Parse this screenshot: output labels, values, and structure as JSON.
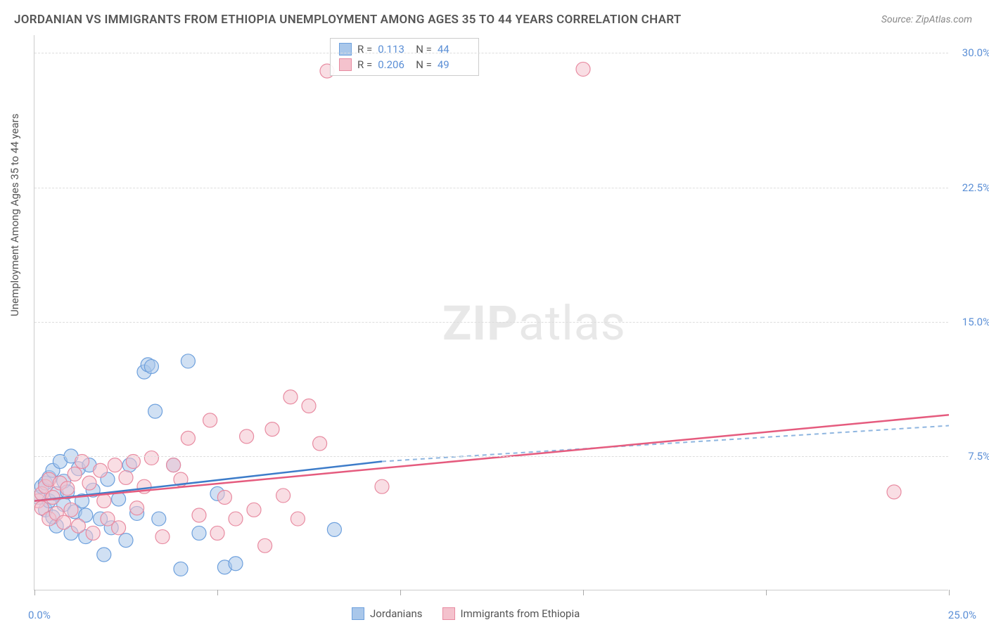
{
  "title": "JORDANIAN VS IMMIGRANTS FROM ETHIOPIA UNEMPLOYMENT AMONG AGES 35 TO 44 YEARS CORRELATION CHART",
  "source": "Source: ZipAtlas.com",
  "y_axis_label": "Unemployment Among Ages 35 to 44 years",
  "watermark_bold": "ZIP",
  "watermark_rest": "atlas",
  "chart": {
    "type": "scatter",
    "xlim": [
      0,
      25
    ],
    "ylim": [
      0,
      31
    ],
    "x_ticks": [
      0,
      5,
      10,
      15,
      20,
      25
    ],
    "x_tick_labels": {
      "0": "0.0%",
      "25": "25.0%"
    },
    "y_ticks": [
      7.5,
      15.0,
      22.5,
      30.0
    ],
    "y_tick_labels": [
      "7.5%",
      "15.0%",
      "22.5%",
      "30.0%"
    ],
    "grid_color": "#dddddd",
    "axis_color": "#cccccc",
    "background_color": "#ffffff",
    "marker_radius": 10,
    "marker_opacity": 0.55,
    "series": [
      {
        "name": "Jordanians",
        "fill": "#a9c7ea",
        "stroke": "#6da0dd",
        "R": "0.113",
        "N": "44",
        "trend": {
          "x1": 0,
          "y1": 5.0,
          "x2": 9.5,
          "y2": 7.2,
          "x2_dash": 25,
          "y2_dash": 9.2,
          "color": "#3d7cc9",
          "width": 2.5,
          "dash_color": "#8fb6e0"
        },
        "points": [
          [
            0.1,
            5.2
          ],
          [
            0.2,
            5.8
          ],
          [
            0.3,
            4.5
          ],
          [
            0.3,
            6.0
          ],
          [
            0.4,
            5.0
          ],
          [
            0.4,
            6.3
          ],
          [
            0.5,
            4.1
          ],
          [
            0.5,
            6.7
          ],
          [
            0.6,
            3.6
          ],
          [
            0.6,
            5.4
          ],
          [
            0.7,
            7.2
          ],
          [
            0.8,
            4.8
          ],
          [
            0.8,
            6.1
          ],
          [
            0.9,
            5.5
          ],
          [
            1.0,
            3.2
          ],
          [
            1.0,
            7.5
          ],
          [
            1.1,
            4.4
          ],
          [
            1.2,
            6.8
          ],
          [
            1.3,
            5.0
          ],
          [
            1.4,
            3.0
          ],
          [
            1.4,
            4.2
          ],
          [
            1.5,
            7.0
          ],
          [
            1.6,
            5.6
          ],
          [
            1.8,
            4.0
          ],
          [
            1.9,
            2.0
          ],
          [
            2.0,
            6.2
          ],
          [
            2.1,
            3.5
          ],
          [
            2.3,
            5.1
          ],
          [
            2.5,
            2.8
          ],
          [
            2.6,
            7.0
          ],
          [
            2.8,
            4.3
          ],
          [
            3.0,
            12.2
          ],
          [
            3.1,
            12.6
          ],
          [
            3.2,
            12.5
          ],
          [
            3.3,
            10.0
          ],
          [
            3.4,
            4.0
          ],
          [
            3.8,
            7.0
          ],
          [
            4.0,
            1.2
          ],
          [
            4.2,
            12.8
          ],
          [
            4.5,
            3.2
          ],
          [
            5.0,
            5.4
          ],
          [
            5.2,
            1.3
          ],
          [
            5.5,
            1.5
          ],
          [
            8.2,
            3.4
          ]
        ]
      },
      {
        "name": "Immigrants from Ethiopia",
        "fill": "#f4c2cd",
        "stroke": "#e88ba1",
        "R": "0.206",
        "N": "49",
        "trend": {
          "x1": 0,
          "y1": 5.0,
          "x2": 25,
          "y2": 9.8,
          "color": "#e55b7e",
          "width": 2.5
        },
        "points": [
          [
            0.1,
            5.0
          ],
          [
            0.2,
            5.4
          ],
          [
            0.2,
            4.6
          ],
          [
            0.3,
            5.8
          ],
          [
            0.4,
            4.0
          ],
          [
            0.4,
            6.2
          ],
          [
            0.5,
            5.2
          ],
          [
            0.6,
            4.3
          ],
          [
            0.7,
            6.0
          ],
          [
            0.8,
            3.8
          ],
          [
            0.9,
            5.7
          ],
          [
            1.0,
            4.5
          ],
          [
            1.1,
            6.5
          ],
          [
            1.2,
            3.6
          ],
          [
            1.3,
            7.2
          ],
          [
            1.5,
            6.0
          ],
          [
            1.6,
            3.2
          ],
          [
            1.8,
            6.7
          ],
          [
            1.9,
            5.0
          ],
          [
            2.0,
            4.0
          ],
          [
            2.2,
            7.0
          ],
          [
            2.3,
            3.5
          ],
          [
            2.5,
            6.3
          ],
          [
            2.7,
            7.2
          ],
          [
            2.8,
            4.6
          ],
          [
            3.0,
            5.8
          ],
          [
            3.2,
            7.4
          ],
          [
            3.5,
            3.0
          ],
          [
            3.8,
            7.0
          ],
          [
            4.0,
            6.2
          ],
          [
            4.2,
            8.5
          ],
          [
            4.5,
            4.2
          ],
          [
            4.8,
            9.5
          ],
          [
            5.0,
            3.2
          ],
          [
            5.2,
            5.2
          ],
          [
            5.5,
            4.0
          ],
          [
            5.8,
            8.6
          ],
          [
            6.0,
            4.5
          ],
          [
            6.3,
            2.5
          ],
          [
            6.5,
            9.0
          ],
          [
            6.8,
            5.3
          ],
          [
            7.0,
            10.8
          ],
          [
            7.2,
            4.0
          ],
          [
            7.5,
            10.3
          ],
          [
            7.8,
            8.2
          ],
          [
            8.0,
            29.0
          ],
          [
            9.5,
            5.8
          ],
          [
            15.0,
            29.1
          ],
          [
            23.5,
            5.5
          ]
        ]
      }
    ]
  },
  "legend_bottom": [
    {
      "label": "Jordanians",
      "fill": "#a9c7ea",
      "stroke": "#6da0dd"
    },
    {
      "label": "Immigrants from Ethiopia",
      "fill": "#f4c2cd",
      "stroke": "#e88ba1"
    }
  ]
}
